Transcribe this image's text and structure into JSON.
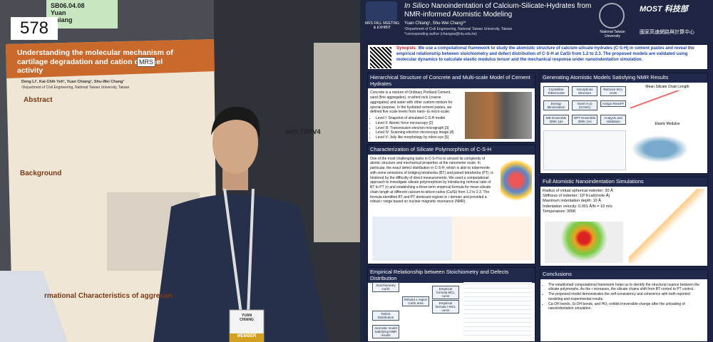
{
  "photo": {
    "sign": {
      "code": "SB06.04.08",
      "name_line1": "Yuan",
      "name_line2": "Chiang"
    },
    "board_number": "578",
    "poster": {
      "title": "Understanding the molecular mechanism of cartilage degradation and cation channel activity",
      "authors": "Deng Li¹, Kai-Chih Yeh¹, Yuan Chiang¹, Shu-Wei Chang¹",
      "affiliation": "¹Department of Civil Engineering, National Taiwan University, Taiwan",
      "logo": "MRS",
      "sections": [
        "Abstract",
        "Background",
        "rmational Characteristics of aggrecan"
      ],
      "figure_caption": "with TRPV4"
    },
    "badge": {
      "name_line1": "YUAN",
      "name_line2": "CHIANG",
      "ribbon": "MEMBER"
    }
  },
  "poster": {
    "header": {
      "event": "MRS FALL MEETING & EXHIBIT",
      "title_italic": "In Silico",
      "title": "Nanoindentation of Calcium-Silicate-Hydrates from NMR-informed Atomistic Modeling",
      "authors": "Yuan Chiang¹, Shu-Wei Chang¹*",
      "affiliation": "¹Department of Civil Engineering, National Taiwan University, Taiwan",
      "corresponding": "*corresponding author (changsw@ntu.edu.tw)",
      "university": "National Taiwan University",
      "sponsor": "MOST 科技部",
      "center": "國家高速網路與計算中心"
    },
    "synopsis": {
      "label": "Synopsis:",
      "text": "We use a computational framework to study the atomistic structure of calcium-silicate-hydrates (C-S-H) in cement pastes and reveal the empirical relationship between stoichiometry and defect distribution of C-S-H at Ca/Si from 1.2 to 2.3. The proposed models are validated using molecular dynamics to calculate elastic modulus tensor and the mechanical response under nanoindentation simulation."
    },
    "sections": {
      "hierarchical": {
        "title": "Hierarchical Structure of Concrete and Multi-scale Model of Cement Hydrates",
        "text": "Concrete is a mixture of Ordinary Portland Cement, sand (fine aggregates), crushed rock (coarse aggregates) and water with other custom mixture for special purpose. In the hydrated cement pastes, we defined five scale levels from nano- to micro-scale.",
        "levels": [
          "Level I: Snapshot of simulated C-S-H model",
          "Level II: Atomic force microscopy [2]",
          "Level III: Transmission electron micrograph [3]",
          "Level IV: Scanning electron microscopy image [4]",
          "Level V: Jolly like morphology by nikon eye [5]"
        ]
      },
      "characterization": {
        "title": "Characterization of Silicate Polymorphism of C-S-H",
        "text": "One of the most challenging tasks in C-S-H is to unravel its complexity of atomic structure and mechanical properties at the nanometer scale. In particular, the exact defect distribution in C-S-H, which is akin to tobermorite with some omissions of bridging tetrahedra (BT) and paired tetrahedra (PT), is hindered by the difficulty of direct measurements. We used a computational approach to investigate silicate polymorphism by introducing removal ratio of BT to PT (r) and establishing a three-term empirical formula for mean silicate chain length at different calcium-to-silicon ratios (Ca/Si) from 1.2 to 2.3. The formula identified BT and PT dominant regions in r domain and provided a robust r range based on nuclear magnetic resonance (NMR)."
      },
      "empirical": {
        "title": "Empirical Relationship between Stoichiometry and Defects Distribution",
        "flow": [
          "Stoichiometry Ca/Si",
          "Rebuild a region Ca/Si area",
          "Empirical formula MCL curve",
          "Empirical formula r-MCL curve",
          "Defect Distribution",
          "Atomistic model Satisfying NMR results"
        ]
      },
      "generating": {
        "title": "Generating Atomistic Models Satisfying NMR Results",
        "steps": [
          "Crystalline Tobermorite",
          "Amorphous Structure",
          "Remove SiO₂ Units",
          "Energy Minimization",
          "Insert H₂O (GCMC)",
          "Assign ReaxFF",
          "MD Ensemble 300K 1ps",
          "NPT Ensemble 300K 1ns",
          "Analysis and Validation"
        ],
        "plots": [
          "Mean Silicate Chain Length",
          "Elastic Modulus"
        ]
      },
      "nanoindentation": {
        "title": "Full Atomistic Nanoindentation Simulations",
        "params": [
          "Radius of virtual spherical indenter: 30 Å",
          "Stiffness of indenter: 10³ Kcal/(mole·Å)",
          "Maximum indentation depth: 10 Å",
          "Indentation velocity: 0.001 Å/fs = 10 m/s",
          "Temperature: 300K"
        ]
      },
      "conclusions": {
        "title": "Conclusions",
        "items": [
          "The established computational framework helps us to identify the structural nuance between the silicate polymorphs. As the r increases, the silicate chains shift from BT control to PT control.",
          "The proposed model demonstrates the self-consistency and coherence with both reported modeling and experimental results.",
          "Ca-OH bonds, Si-OH bonds, and HO₂ exhibit irreversible change after the unloading of nanoindentation simulation."
        ]
      }
    }
  }
}
